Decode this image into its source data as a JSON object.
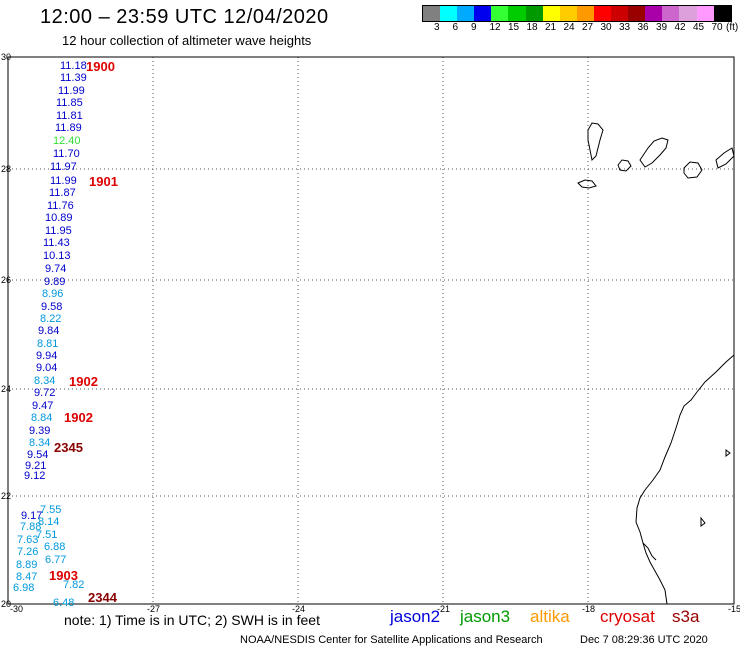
{
  "header": {
    "title": "12:00 – 23:59 UTC 12/04/2020",
    "subtitle": "12 hour collection of altimeter wave heights"
  },
  "scale": {
    "unit": "(ft)",
    "colors": [
      "#808080",
      "#00ffff",
      "#00aaff",
      "#0000ee",
      "#33ff33",
      "#00cc00",
      "#009900",
      "#ffff00",
      "#ffcc00",
      "#ff9900",
      "#ff0000",
      "#cc0000",
      "#990000",
      "#aa00aa",
      "#cc66cc",
      "#dda0dd",
      "#ff99ff",
      "#000000"
    ],
    "ticks": [
      "3",
      "6",
      "9",
      "12",
      "15",
      "18",
      "21",
      "24",
      "27",
      "30",
      "33",
      "36",
      "39",
      "42",
      "45",
      "70"
    ]
  },
  "axes": {
    "x_ticks": [
      "-30",
      "-27",
      "-24",
      "-21",
      "-18",
      "-15"
    ],
    "y_ticks": [
      "30",
      "28",
      "26",
      "24",
      "22",
      "20"
    ]
  },
  "observations": [
    {
      "v": "11.18",
      "c": "#0000cc"
    },
    {
      "v": "11.39",
      "c": "#0000cc"
    },
    {
      "v": "11.99",
      "c": "#0000cc"
    },
    {
      "v": "11.85",
      "c": "#0000cc"
    },
    {
      "v": "11.81",
      "c": "#0000cc"
    },
    {
      "v": "11.89",
      "c": "#0000cc"
    },
    {
      "v": "12.40",
      "c": "#33dd33"
    },
    {
      "v": "11.70",
      "c": "#0000cc"
    },
    {
      "v": "11.97",
      "c": "#0000cc"
    },
    {
      "v": "11.99",
      "c": "#0000cc"
    },
    {
      "v": "11.87",
      "c": "#0000cc"
    },
    {
      "v": "11.76",
      "c": "#0000cc"
    },
    {
      "v": "10.89",
      "c": "#0000cc"
    },
    {
      "v": "11.95",
      "c": "#0000cc"
    },
    {
      "v": "11.43",
      "c": "#0000cc"
    },
    {
      "v": "10.13",
      "c": "#0000cc"
    },
    {
      "v": "9.74",
      "c": "#0000cc"
    },
    {
      "v": "9.89",
      "c": "#0000cc"
    },
    {
      "v": "8.96",
      "c": "#0099dd"
    },
    {
      "v": "9.58",
      "c": "#0000cc"
    },
    {
      "v": "8.22",
      "c": "#0099dd"
    },
    {
      "v": "9.84",
      "c": "#0000cc"
    },
    {
      "v": "8.81",
      "c": "#0099dd"
    },
    {
      "v": "9.94",
      "c": "#0000cc"
    },
    {
      "v": "9.04",
      "c": "#0000cc"
    },
    {
      "v": "8.34",
      "c": "#0099dd"
    },
    {
      "v": "9.72",
      "c": "#0000cc"
    },
    {
      "v": "9.47",
      "c": "#0000cc"
    },
    {
      "v": "8.84",
      "c": "#0099dd"
    },
    {
      "v": "9.39",
      "c": "#0000cc"
    },
    {
      "v": "8.34",
      "c": "#0099dd"
    },
    {
      "v": "9.54",
      "c": "#0000cc"
    },
    {
      "v": "9.21",
      "c": "#0000cc"
    },
    {
      "v": "9.12",
      "c": "#0000cc"
    },
    {
      "v": "9.17",
      "c": "#0000cc"
    },
    {
      "v": "7.55",
      "c": "#0099dd"
    },
    {
      "v": "8.14",
      "c": "#0099dd"
    },
    {
      "v": "7.88",
      "c": "#0099dd"
    },
    {
      "v": "7.51",
      "c": "#0099dd"
    },
    {
      "v": "7.63",
      "c": "#0099dd"
    },
    {
      "v": "6.88",
      "c": "#0099dd"
    },
    {
      "v": "7.26",
      "c": "#0099dd"
    },
    {
      "v": "6.77",
      "c": "#0099dd"
    },
    {
      "v": "8.89",
      "c": "#0099dd"
    },
    {
      "v": "8.47",
      "c": "#0099dd"
    },
    {
      "v": "7.82",
      "c": "#0099dd"
    },
    {
      "v": "6.98",
      "c": "#0099dd"
    },
    {
      "v": "6.48",
      "c": "#0099dd"
    }
  ],
  "times": [
    {
      "t": "1900",
      "c": "#dd0000"
    },
    {
      "t": "1901",
      "c": "#dd0000"
    },
    {
      "t": "1902",
      "c": "#dd0000"
    },
    {
      "t": "1902",
      "c": "#dd0000"
    },
    {
      "t": "2345",
      "c": "#880000"
    },
    {
      "t": "1903",
      "c": "#dd0000"
    },
    {
      "t": "2344",
      "c": "#880000"
    }
  ],
  "footer": {
    "note": "note:  1) Time is in UTC;  2) SWH is in feet",
    "missions": [
      {
        "name": "jason2",
        "color": "#0000dd"
      },
      {
        "name": "jason3",
        "color": "#009900"
      },
      {
        "name": "altika",
        "color": "#ff9900"
      },
      {
        "name": "cryosat",
        "color": "#dd0000"
      },
      {
        "name": "s3a",
        "color": "#990000"
      }
    ],
    "credit": "NOAA/NESDIS Center for Satellite Applications and Research",
    "timestamp": "Dec  7 08:29:36 UTC 2020"
  }
}
